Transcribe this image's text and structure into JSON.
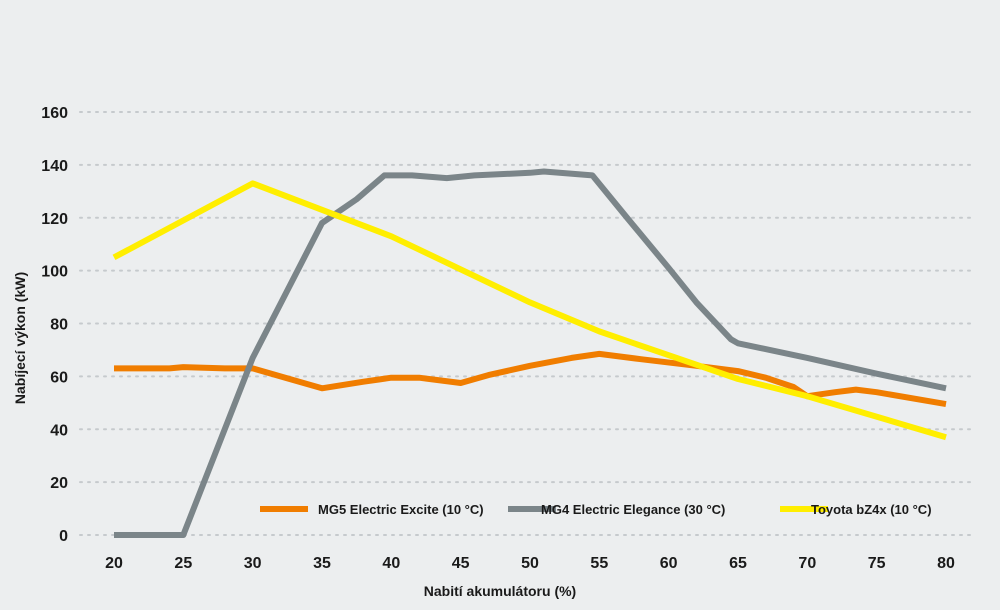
{
  "chart_data": {
    "type": "line",
    "title": "",
    "xlabel": "Nabití akumulátoru (%)",
    "ylabel": "Nabíjecí výkon (kW)",
    "xlim": [
      20,
      80
    ],
    "ylim": [
      0,
      160
    ],
    "xticks": [
      20,
      25,
      30,
      35,
      40,
      45,
      50,
      55,
      60,
      65,
      70,
      75,
      80
    ],
    "yticks": [
      0,
      20,
      40,
      60,
      80,
      100,
      120,
      140,
      160
    ],
    "grid": true,
    "legend_position": "bottom-right",
    "series": [
      {
        "name": "MG5 Electric Excite (10 °C)",
        "color": "#f07d00",
        "x": [
          20,
          24,
          25,
          28,
          30,
          35,
          38,
          40,
          42,
          45,
          47,
          50,
          53,
          55,
          58,
          62,
          65,
          67,
          69,
          70,
          72,
          73.5,
          75,
          80
        ],
        "y": [
          63,
          63,
          63.5,
          63,
          63,
          55.5,
          58,
          59.5,
          59.5,
          57.5,
          60.5,
          64,
          67,
          68.5,
          66.5,
          64,
          62,
          59.5,
          56,
          52.5,
          54,
          55,
          54,
          49.5
        ]
      },
      {
        "name": "MG4 Electric Elegance (30 °C)",
        "color": "#7b8589",
        "x": [
          20,
          25,
          30,
          35,
          37.5,
          39.5,
          41.5,
          44,
          46,
          50,
          51,
          54.5,
          57,
          60,
          62,
          64.5,
          65,
          70,
          75,
          80
        ],
        "y": [
          0,
          0,
          67,
          118,
          127,
          136,
          136,
          135,
          136,
          137,
          137.5,
          136,
          120,
          101,
          88,
          74,
          72.5,
          67,
          61,
          55.5
        ]
      },
      {
        "name": "Toyota bZ4x (10 °C)",
        "color": "#ffee00",
        "x": [
          20,
          30,
          40,
          50,
          55,
          60,
          65,
          70,
          80
        ],
        "y": [
          105,
          133,
          113,
          88,
          77,
          68,
          59,
          52.5,
          37
        ]
      }
    ]
  }
}
